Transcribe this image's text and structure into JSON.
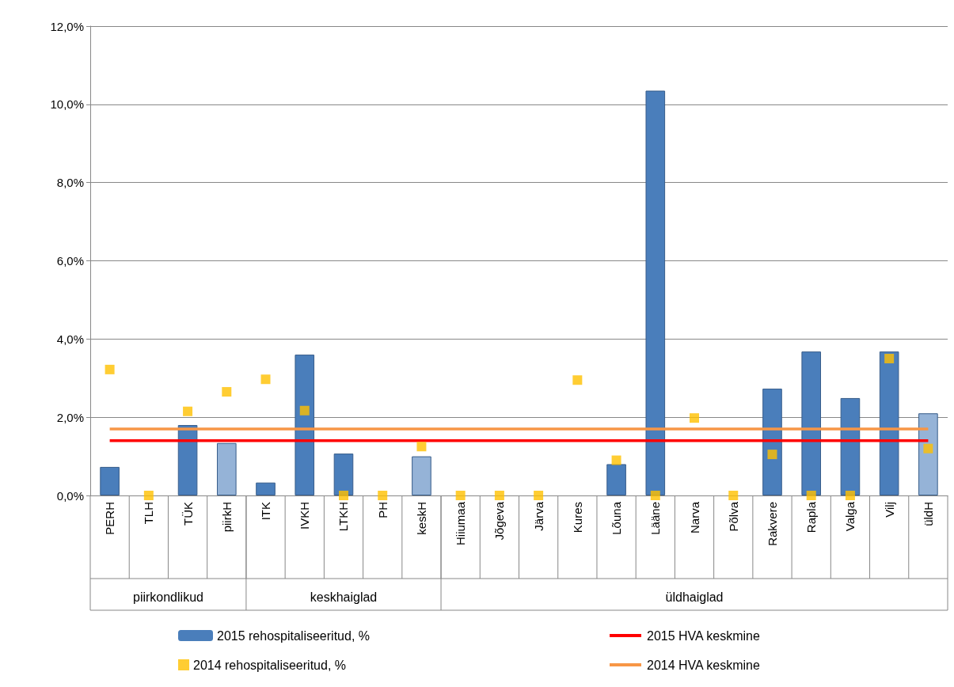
{
  "chart_data": {
    "type": "bar",
    "categories": [
      "PERH",
      "TLH",
      "TÜK",
      "piirkH",
      "ITK",
      "IVKH",
      "LTKH",
      "PH",
      "keskH",
      "Hiiumaa",
      "Jõgeva",
      "Järva",
      "Kures",
      "Lõuna",
      "Lääne",
      "Narva",
      "Põlva",
      "Rakvere",
      "Rapla",
      "Valga",
      "Vilj",
      "üldH"
    ],
    "series": [
      {
        "name": "2015 rehospitaliseeritud, %",
        "color": "#4a7ebb",
        "colors": [
          "#4a7ebb",
          "#4a7ebb",
          "#4a7ebb",
          "#95b3d7",
          "#4a7ebb",
          "#4a7ebb",
          "#4a7ebb",
          "#4a7ebb",
          "#95b3d7",
          "#4a7ebb",
          "#4a7ebb",
          "#4a7ebb",
          "#4a7ebb",
          "#4a7ebb",
          "#4a7ebb",
          "#4a7ebb",
          "#4a7ebb",
          "#4a7ebb",
          "#4a7ebb",
          "#4a7ebb",
          "#4a7ebb",
          "#95b3d7"
        ],
        "values": [
          0.73,
          null,
          1.8,
          1.34,
          0.33,
          3.6,
          1.07,
          null,
          1.0,
          null,
          null,
          null,
          null,
          0.8,
          10.35,
          null,
          null,
          2.73,
          3.68,
          2.49,
          3.68,
          2.1
        ]
      },
      {
        "name": "2014 rehospitaliseeritud, %",
        "type": "scatter",
        "marker": "square",
        "color": "#ffc000",
        "values": [
          3.22,
          0,
          2.15,
          2.65,
          2.97,
          2.17,
          0,
          0,
          1.25,
          0,
          0,
          0,
          2.95,
          0.9,
          0,
          1.98,
          0,
          1.05,
          0,
          0,
          3.5,
          1.2
        ]
      },
      {
        "name": "2015 HVA keskmine",
        "type": "line",
        "marker": "none",
        "color": "#ff0000",
        "values": [
          1.4,
          1.4,
          1.4,
          1.4,
          1.4,
          1.4,
          1.4,
          1.4,
          1.4,
          1.4,
          1.4,
          1.4,
          1.4,
          1.4,
          1.4,
          1.4,
          1.4,
          1.4,
          1.4,
          1.4,
          1.4,
          1.4
        ]
      },
      {
        "name": "2014 HVA keskmine",
        "type": "line",
        "marker": "none",
        "color": "#f79646",
        "values": [
          1.7,
          1.7,
          1.7,
          1.7,
          1.7,
          1.7,
          1.7,
          1.7,
          1.7,
          1.7,
          1.7,
          1.7,
          1.7,
          1.7,
          1.7,
          1.7,
          1.7,
          1.7,
          1.7,
          1.7,
          1.7,
          1.7
        ]
      }
    ],
    "ylim": [
      0,
      12
    ],
    "yticks": [
      {
        "value": 0,
        "label": "0,0%"
      },
      {
        "value": 2,
        "label": "2,0%"
      },
      {
        "value": 4,
        "label": "4,0%"
      },
      {
        "value": 6,
        "label": "6,0%"
      },
      {
        "value": 8,
        "label": "8,0%"
      },
      {
        "value": 10,
        "label": "10,0%"
      },
      {
        "value": 12,
        "label": "12,0%"
      }
    ],
    "grid": "y",
    "legend": "bottom",
    "annotations": [
      "piirkondlikud",
      "keskhaiglad",
      "üldhaiglad"
    ]
  }
}
